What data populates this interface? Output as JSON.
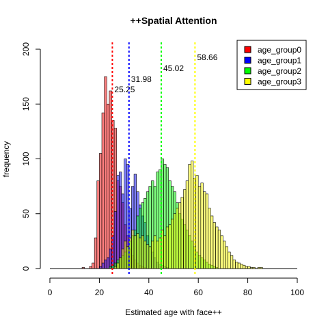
{
  "chart_data": {
    "type": "histogram",
    "title": "++Spatial Attention",
    "xlabel": "Estimated age with face++",
    "ylabel": "frequency",
    "xlim": [
      0,
      100
    ],
    "ylim": [
      0,
      200
    ],
    "xticks": [
      0,
      20,
      40,
      60,
      80,
      100
    ],
    "yticks": [
      0,
      50,
      100,
      150,
      200
    ],
    "bin_width": 1,
    "legend_position": "top-right",
    "series": [
      {
        "name": "age_group0",
        "color": "#ff0000",
        "mean": 25.25,
        "mean_label": "25.25",
        "bins": [
          [
            13,
            1
          ],
          [
            14,
            0
          ],
          [
            15,
            0
          ],
          [
            16,
            2
          ],
          [
            17,
            5
          ],
          [
            18,
            28
          ],
          [
            19,
            80
          ],
          [
            20,
            105
          ],
          [
            21,
            142
          ],
          [
            22,
            175
          ],
          [
            23,
            150
          ],
          [
            24,
            162
          ],
          [
            25,
            135
          ],
          [
            26,
            128
          ],
          [
            27,
            80
          ],
          [
            28,
            75
          ],
          [
            29,
            60
          ],
          [
            30,
            40
          ],
          [
            31,
            30
          ],
          [
            32,
            18
          ],
          [
            33,
            12
          ],
          [
            34,
            8
          ],
          [
            35,
            5
          ],
          [
            36,
            3
          ],
          [
            37,
            2
          ],
          [
            38,
            1
          ]
        ]
      },
      {
        "name": "age_group1",
        "color": "#0000ff",
        "mean": 31.98,
        "mean_label": "31.98",
        "bins": [
          [
            20,
            2
          ],
          [
            21,
            5
          ],
          [
            22,
            8
          ],
          [
            23,
            10
          ],
          [
            24,
            18
          ],
          [
            25,
            30
          ],
          [
            26,
            52
          ],
          [
            27,
            85
          ],
          [
            28,
            88
          ],
          [
            29,
            68
          ],
          [
            30,
            100
          ],
          [
            31,
            95
          ],
          [
            32,
            55
          ],
          [
            33,
            75
          ],
          [
            34,
            86
          ],
          [
            35,
            70
          ],
          [
            36,
            58
          ],
          [
            37,
            48
          ],
          [
            38,
            42
          ],
          [
            39,
            30
          ],
          [
            40,
            20
          ],
          [
            41,
            15
          ],
          [
            42,
            10
          ],
          [
            43,
            6
          ],
          [
            44,
            4
          ],
          [
            45,
            3
          ],
          [
            46,
            2
          ],
          [
            47,
            1
          ]
        ]
      },
      {
        "name": "age_group2",
        "color": "#00ff00",
        "mean": 45.02,
        "mean_label": "45.02",
        "bins": [
          [
            24,
            2
          ],
          [
            25,
            3
          ],
          [
            26,
            5
          ],
          [
            27,
            8
          ],
          [
            28,
            10
          ],
          [
            29,
            12
          ],
          [
            30,
            15
          ],
          [
            31,
            20
          ],
          [
            32,
            25
          ],
          [
            33,
            30
          ],
          [
            34,
            35
          ],
          [
            35,
            48
          ],
          [
            36,
            55
          ],
          [
            37,
            60
          ],
          [
            38,
            64
          ],
          [
            39,
            70
          ],
          [
            40,
            75
          ],
          [
            41,
            80
          ],
          [
            42,
            75
          ],
          [
            43,
            88
          ],
          [
            44,
            90
          ],
          [
            45,
            100
          ],
          [
            46,
            95
          ],
          [
            47,
            92
          ],
          [
            48,
            80
          ],
          [
            49,
            75
          ],
          [
            50,
            70
          ],
          [
            51,
            60
          ],
          [
            52,
            50
          ],
          [
            53,
            45
          ],
          [
            54,
            40
          ],
          [
            55,
            35
          ],
          [
            56,
            30
          ],
          [
            57,
            25
          ],
          [
            58,
            20
          ],
          [
            59,
            15
          ],
          [
            60,
            12
          ],
          [
            61,
            10
          ],
          [
            62,
            8
          ],
          [
            63,
            6
          ],
          [
            64,
            4
          ],
          [
            65,
            3
          ],
          [
            66,
            2
          ],
          [
            67,
            1
          ]
        ]
      },
      {
        "name": "age_group3",
        "color": "#ffff00",
        "mean": 58.66,
        "mean_label": "58.66",
        "bins": [
          [
            26,
            2
          ],
          [
            27,
            5
          ],
          [
            28,
            10
          ],
          [
            29,
            18
          ],
          [
            30,
            25
          ],
          [
            31,
            20
          ],
          [
            32,
            28
          ],
          [
            33,
            35
          ],
          [
            34,
            30
          ],
          [
            35,
            32
          ],
          [
            36,
            28
          ],
          [
            37,
            30
          ],
          [
            38,
            25
          ],
          [
            39,
            22
          ],
          [
            40,
            20
          ],
          [
            41,
            25
          ],
          [
            42,
            30
          ],
          [
            43,
            25
          ],
          [
            44,
            28
          ],
          [
            45,
            35
          ],
          [
            46,
            30
          ],
          [
            47,
            38
          ],
          [
            48,
            40
          ],
          [
            49,
            45
          ],
          [
            50,
            50
          ],
          [
            51,
            55
          ],
          [
            52,
            60
          ],
          [
            53,
            65
          ],
          [
            54,
            72
          ],
          [
            55,
            80
          ],
          [
            56,
            95
          ],
          [
            57,
            98
          ],
          [
            58,
            82
          ],
          [
            59,
            85
          ],
          [
            60,
            75
          ],
          [
            61,
            78
          ],
          [
            62,
            70
          ],
          [
            63,
            68
          ],
          [
            64,
            55
          ],
          [
            65,
            48
          ],
          [
            66,
            42
          ],
          [
            67,
            38
          ],
          [
            68,
            35
          ],
          [
            69,
            30
          ],
          [
            70,
            25
          ],
          [
            71,
            20
          ],
          [
            72,
            15
          ],
          [
            73,
            12
          ],
          [
            74,
            8
          ],
          [
            75,
            6
          ],
          [
            76,
            5
          ],
          [
            77,
            4
          ],
          [
            78,
            3
          ],
          [
            79,
            2
          ],
          [
            80,
            2
          ],
          [
            81,
            1
          ],
          [
            82,
            1
          ],
          [
            84,
            1
          ],
          [
            85,
            1
          ]
        ]
      }
    ]
  }
}
